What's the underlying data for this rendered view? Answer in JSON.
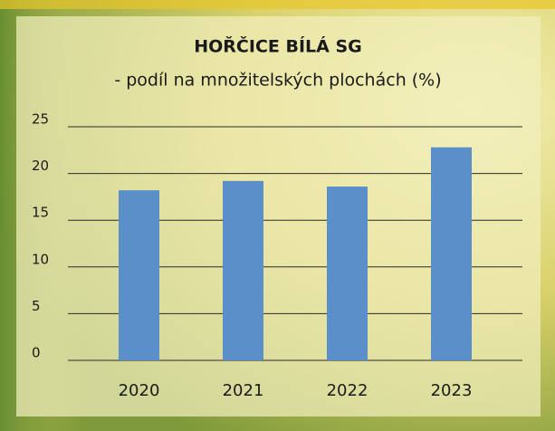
{
  "chart_data": {
    "type": "bar",
    "title": "HOŘČICE BÍLÁ SG",
    "subtitle": "- podíl na množitelských plochách (%)",
    "categories": [
      "2020",
      "2021",
      "2022",
      "2023"
    ],
    "values": [
      18.2,
      19.2,
      18.6,
      22.8
    ],
    "color": "#5b8fc9",
    "ylim": [
      0,
      25
    ],
    "yticks": [
      0,
      5,
      10,
      15,
      20,
      25
    ],
    "grid": true
  }
}
